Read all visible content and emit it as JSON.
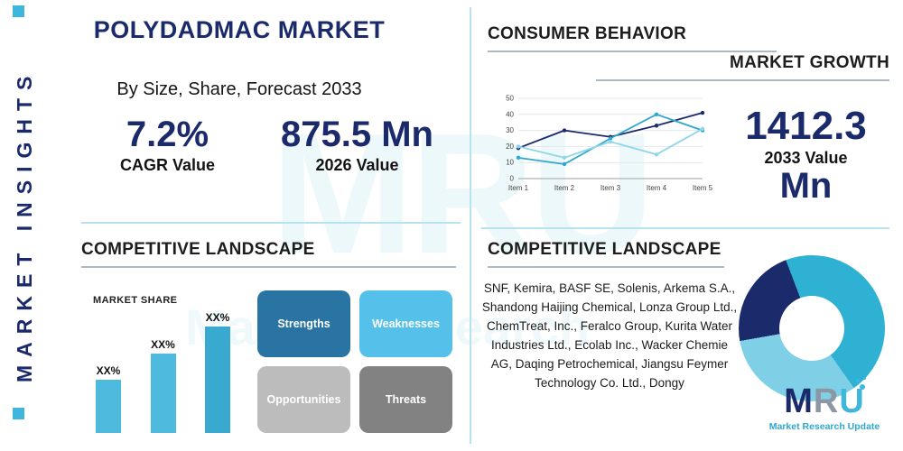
{
  "colors": {
    "navy": "#1b2a6b",
    "teal": "#3fb6dc",
    "divider": "#b9e2f1",
    "heading_underline": "#aeb9c3"
  },
  "sidebar": {
    "label": "MARKET INSIGHTS"
  },
  "header": {
    "title": "POLYDADMAC MARKET",
    "subtitle": "By Size, Share, Forecast 2033"
  },
  "stats": {
    "cagr": {
      "value": "7.2%",
      "label": "CAGR Value"
    },
    "value_2026": {
      "value": "875.5 Mn",
      "label": "2026 Value"
    },
    "value_2033": {
      "value": "1412.3",
      "unit": "Mn",
      "label": "2033 Value"
    }
  },
  "sections": {
    "consumer_behavior": "CONSUMER BEHAVIOR",
    "market_growth": "MARKET GROWTH",
    "competitive_landscape_left": "COMPETITIVE LANDSCAPE",
    "competitive_landscape_right": "COMPETITIVE LANDSCAPE"
  },
  "swot": {
    "strengths": "Strengths",
    "weaknesses": "Weaknesses",
    "opportunities": "Opportunities",
    "threats": "Threats"
  },
  "companies": {
    "text": "SNF, Kemira, BASF SE, Solenis, Arkema S.A., Shandong Haijing Chemical, Lonza Group Ltd., ChemTreat, Inc., Feralco Group, Kurita Water Industries Ltd., Ecolab Inc., Wacker Chemie AG, Daqing Petrochemical, Jiangsu Feymer Technology Co. Ltd., Dongy"
  },
  "logo": {
    "m": "M",
    "r": "R",
    "u": "U",
    "tagline": "Market Research Update"
  },
  "watermark": {
    "text": "MRU",
    "subtext": "Market Research"
  },
  "chart_data": [
    {
      "name": "market-growth",
      "type": "line",
      "title": "MARKET GROWTH",
      "x": [
        "Item 1",
        "Item 2",
        "Item 3",
        "Item 4",
        "Item 5"
      ],
      "series": [
        {
          "name": "series-1",
          "color": "#1b2a6b",
          "values": [
            19,
            30,
            26,
            33,
            41
          ]
        },
        {
          "name": "series-2",
          "color": "#2fa8cf",
          "values": [
            13,
            9,
            25,
            40,
            30
          ]
        },
        {
          "name": "series-3",
          "color": "#8ed6ea",
          "values": [
            20,
            13,
            23,
            15,
            31
          ]
        }
      ],
      "ylim": [
        0,
        50
      ],
      "yticks": [
        0,
        10,
        20,
        30,
        40,
        50
      ],
      "grid": true,
      "legend": "none"
    },
    {
      "name": "market-share",
      "type": "bar",
      "title": "MARKET SHARE",
      "categories": [
        "XX%",
        "XX%",
        "XX%"
      ],
      "values": [
        35,
        52,
        70
      ],
      "colors": [
        "#4dbade",
        "#4dbade",
        "#3aa9cf"
      ],
      "xlabel": "",
      "ylabel": ""
    },
    {
      "name": "market-share-donut",
      "type": "pie",
      "donut": true,
      "start_angle": -100,
      "slices": [
        {
          "name": "slice-1",
          "value": 22,
          "color": "#1b2a6b"
        },
        {
          "name": "slice-2",
          "value": 46,
          "color": "#2fb1d3"
        },
        {
          "name": "slice-3",
          "value": 32,
          "color": "#7fd0e6"
        }
      ]
    }
  ]
}
